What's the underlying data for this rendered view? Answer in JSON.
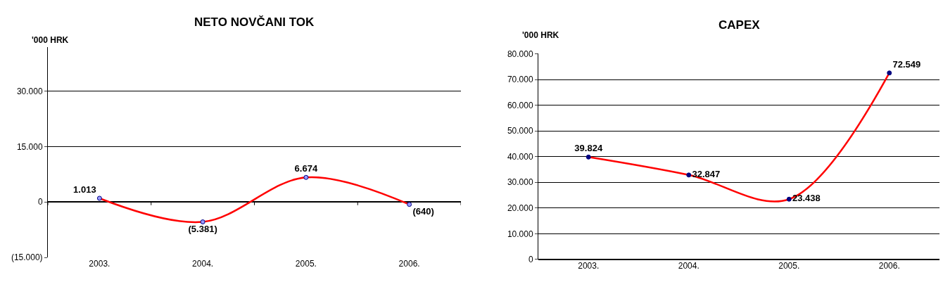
{
  "chart_data": [
    {
      "type": "line",
      "title": "NETO NOVČANI TOK",
      "ylabel": "'000 HRK",
      "categories": [
        "2003.",
        "2004.",
        "2005.",
        "2006."
      ],
      "series": [
        {
          "color": "#ff0000",
          "values": [
            1013,
            -5381,
            6674,
            -640
          ],
          "value_labels": [
            "1.013",
            "(5.381)",
            "6.674",
            "(640)"
          ],
          "colors": [
            "#9999ff",
            "#9999ff",
            "#9999ff",
            "#9999ff"
          ]
        }
      ],
      "ylim": [
        -15000,
        42000
      ],
      "yticks": [
        {
          "value": -15000,
          "label": "(15.000)"
        },
        0,
        {
          "value": 15000,
          "label": "15.000"
        },
        {
          "value": 30000,
          "label": "30.000"
        }
      ],
      "grid": "y",
      "marker": "circle",
      "line_style": "solid"
    },
    {
      "type": "line",
      "title": "CAPEX",
      "ylabel": "'000 HRK",
      "categories": [
        "2003.",
        "2004.",
        "2005.",
        "2006."
      ],
      "series": [
        {
          "color": "#ff0000",
          "values": [
            39824,
            32847,
            23438,
            72549
          ],
          "value_labels": [
            "39.824",
            "32.847",
            "23.438",
            "72.549"
          ],
          "colors": [
            "#000080",
            "#000080",
            "#000080",
            "#000080"
          ]
        }
      ],
      "ylim": [
        0,
        80000
      ],
      "yticks": [
        0,
        {
          "value": 10000,
          "label": "10.000"
        },
        {
          "value": 20000,
          "label": "20.000"
        },
        {
          "value": 30000,
          "label": "30.000"
        },
        {
          "value": 40000,
          "label": "40.000"
        },
        {
          "value": 50000,
          "label": "50.000"
        },
        {
          "value": 60000,
          "label": "60.000"
        },
        {
          "value": 70000,
          "label": "70.000"
        },
        {
          "value": 80000,
          "label": "80.000"
        }
      ],
      "grid": "y",
      "marker": "circle",
      "line_style": "solid"
    }
  ]
}
